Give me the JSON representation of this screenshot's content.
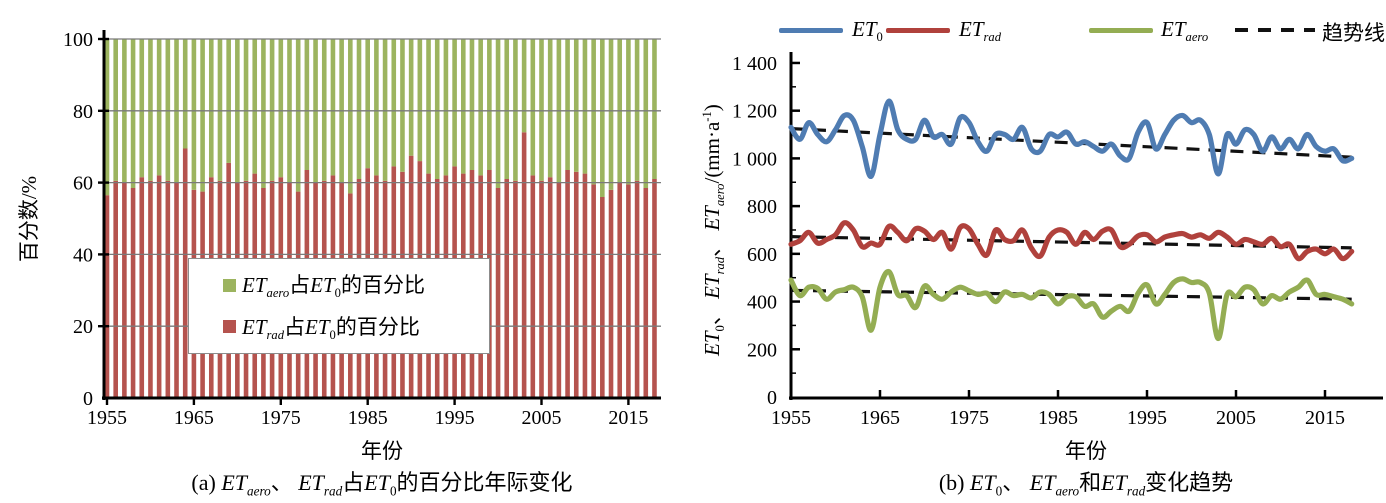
{
  "figure_background": "#ffffff",
  "colors": {
    "bar_rad": "#B5534E",
    "bar_aero": "#9CB45F",
    "line_et0": "#4F7CB2",
    "line_etrad": "#B0413C",
    "line_etaero": "#94AD53",
    "trend": "#111111",
    "gridline": "#7a7a7a",
    "axis": "#000000"
  },
  "panel_a": {
    "caption_rich": "(a) *ET*_{aero}、 *ET*_{rad}占*ET*_{0}的百分比年际变化",
    "x_title": "年份",
    "y_title": "百分数/%",
    "legend": [
      {
        "label_rich": "*ET*_{aero}占*ET*_{0}的百分比",
        "color_key": "bar_aero"
      },
      {
        "label_rich": "*ET*_{rad}占*ET*_{0}的百分比",
        "color_key": "bar_rad"
      }
    ]
  },
  "panel_b": {
    "caption_rich": "(b) *ET*_{0}、 *ET*_{aero}和*ET*_{rad}变化趋势",
    "x_title": "年份",
    "y_title_rich": "*ET*_{0}、 *ET*_{rad}、 *ET*_{aero}/(mm·a^{-1})",
    "legend": [
      {
        "label_rich": "*ET*_{0}",
        "color_key": "line_et0",
        "style": "line"
      },
      {
        "label_rich": "*ET*_{rad}",
        "color_key": "line_etrad",
        "style": "line"
      },
      {
        "label_rich": "*ET*_{aero}",
        "color_key": "line_etaero",
        "style": "line"
      },
      {
        "label_rich": "趋势线",
        "color_key": "trend",
        "style": "dash"
      }
    ]
  },
  "chart_data": [
    {
      "type": "bar",
      "stacked": true,
      "title": "(a) ET_aero、ET_rad占ET_0的百分比年际变化",
      "xlabel": "年份",
      "ylabel": "百分数/%",
      "ylim": [
        0,
        100
      ],
      "ytick_values": [
        0,
        20,
        40,
        60,
        80,
        100
      ],
      "ytick_labels": [
        "0",
        "20",
        "40",
        "60",
        "80",
        "100"
      ],
      "xtick_values": [
        1955,
        1965,
        1975,
        1985,
        1995,
        2005,
        2015
      ],
      "xtick_labels": [
        "1955",
        "1965",
        "1975",
        "1985",
        "1995",
        "2005",
        "2015"
      ],
      "x_years": {
        "start": 1955,
        "end": 2018,
        "step": 1
      },
      "grid": true,
      "legend_position": "inside-center",
      "series": [
        {
          "name": "ET_rad占ET_0的百分比",
          "color_key": "bar_rad",
          "values": [
            56.5,
            60.5,
            60,
            58.5,
            61.5,
            60.5,
            62,
            60.5,
            60,
            69.5,
            58,
            57.5,
            61.5,
            60.5,
            65.5,
            60,
            60.5,
            62.5,
            58.5,
            60.5,
            61.5,
            60,
            57.5,
            63.5,
            60,
            60.5,
            62,
            60,
            57,
            61,
            64,
            62,
            60.5,
            64.5,
            63,
            67.5,
            66,
            62.5,
            61,
            62,
            64.5,
            62.5,
            63.5,
            62,
            63.5,
            58.5,
            61,
            60.5,
            74,
            62,
            60.5,
            61.5,
            60,
            63.5,
            63,
            62.5,
            59.5,
            56,
            58,
            60,
            59.5,
            60.5,
            58.5,
            61
          ]
        },
        {
          "name": "ET_aero占ET_0的百分比",
          "color_key": "bar_aero",
          "values": [
            43.5,
            39.5,
            40,
            41.5,
            38.5,
            39.5,
            38,
            39.5,
            40,
            30.5,
            42,
            42.5,
            38.5,
            39.5,
            34.5,
            40,
            39.5,
            37.5,
            41.5,
            39.5,
            38.5,
            40,
            42.5,
            36.5,
            40,
            39.5,
            38,
            40,
            43,
            39,
            36,
            38,
            39.5,
            35.5,
            37,
            32.5,
            34,
            37.5,
            39,
            38,
            35.5,
            37.5,
            36.5,
            38,
            36.5,
            41.5,
            39,
            39.5,
            26,
            38,
            39.5,
            38.5,
            40,
            36.5,
            37,
            37.5,
            40.5,
            44,
            42,
            40,
            40.5,
            39.5,
            41.5,
            39
          ]
        }
      ]
    },
    {
      "type": "line",
      "title": "(b) ET_0、ET_aero和ET_rad变化趋势",
      "xlabel": "年份",
      "ylabel": "ET_0、ET_rad、ET_aero/(mm·a-1)",
      "ylim": [
        0,
        1400
      ],
      "ytick_values": [
        0,
        200,
        400,
        600,
        800,
        1000,
        1200,
        1400
      ],
      "ytick_labels": [
        "0",
        "200",
        "400",
        "600",
        "800",
        "1 000",
        "1 200",
        "1 400"
      ],
      "ytick_minor_values": [
        100,
        300,
        500,
        700,
        900,
        1100,
        1300
      ],
      "xtick_values": [
        1955,
        1965,
        1975,
        1985,
        1995,
        2005,
        2015
      ],
      "xtick_labels": [
        "1955",
        "1965",
        "1975",
        "1985",
        "1995",
        "2005",
        "2015"
      ],
      "x_years": {
        "start": 1955,
        "end": 2018,
        "step": 1
      },
      "grid": false,
      "legend_position": "top",
      "series": [
        {
          "name": "ET_0",
          "color_key": "line_et0",
          "values": [
            1130,
            1080,
            1150,
            1100,
            1070,
            1120,
            1180,
            1160,
            1050,
            925,
            1100,
            1240,
            1120,
            1080,
            1080,
            1160,
            1090,
            1100,
            1060,
            1170,
            1150,
            1070,
            1030,
            1100,
            1100,
            1080,
            1130,
            1040,
            1030,
            1100,
            1090,
            1110,
            1060,
            1070,
            1050,
            1030,
            1060,
            1010,
            1000,
            1110,
            1150,
            1040,
            1100,
            1160,
            1180,
            1150,
            1160,
            1100,
            935,
            1100,
            1060,
            1120,
            1100,
            1030,
            1090,
            1040,
            1080,
            1040,
            1100,
            1050,
            1030,
            1040,
            990,
            1000
          ]
        },
        {
          "name": "ET_rad",
          "color_key": "line_etrad",
          "values": [
            640,
            655,
            690,
            645,
            660,
            680,
            730,
            700,
            630,
            645,
            640,
            715,
            690,
            655,
            705,
            695,
            660,
            690,
            620,
            710,
            705,
            640,
            595,
            700,
            660,
            655,
            700,
            625,
            590,
            670,
            700,
            690,
            640,
            690,
            660,
            695,
            700,
            630,
            640,
            675,
            680,
            650,
            670,
            680,
            685,
            670,
            680,
            665,
            690,
            670,
            640,
            660,
            650,
            640,
            665,
            630,
            640,
            580,
            610,
            620,
            600,
            620,
            580,
            610
          ]
        },
        {
          "name": "ET_aero",
          "color_key": "line_etaero",
          "values": [
            490,
            425,
            460,
            455,
            410,
            440,
            450,
            460,
            420,
            280,
            460,
            525,
            430,
            425,
            375,
            465,
            430,
            410,
            440,
            460,
            445,
            430,
            435,
            400,
            440,
            425,
            430,
            415,
            440,
            430,
            390,
            420,
            420,
            380,
            390,
            335,
            360,
            380,
            360,
            435,
            470,
            390,
            430,
            480,
            495,
            480,
            480,
            435,
            245,
            430,
            420,
            460,
            450,
            390,
            425,
            410,
            440,
            460,
            490,
            430,
            430,
            420,
            410,
            390
          ]
        }
      ],
      "trend_lines": [
        {
          "series": "ET_0",
          "start_value": 1125,
          "end_value": 1005
        },
        {
          "series": "ET_rad",
          "start_value": 672,
          "end_value": 625
        },
        {
          "series": "ET_aero",
          "start_value": 447,
          "end_value": 410
        }
      ]
    }
  ]
}
